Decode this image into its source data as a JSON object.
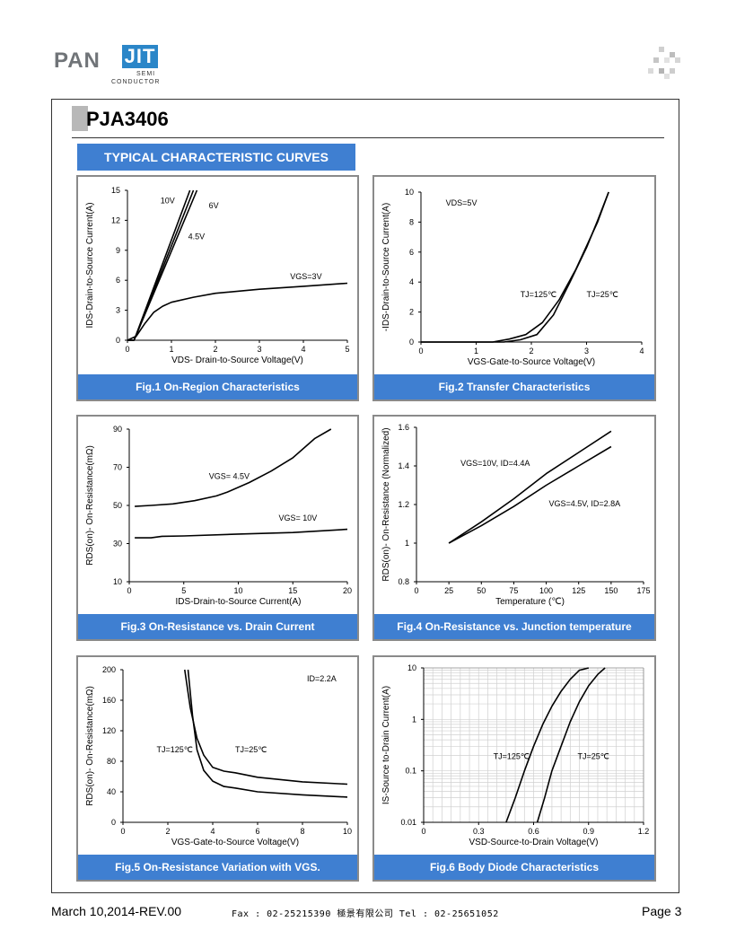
{
  "header": {
    "logo_pan": "PAN",
    "logo_jit": "JIT",
    "logo_semi": "SEMI",
    "logo_conductor": "CONDUCTOR",
    "brand_color": "#2b86c8",
    "part_number": "PJA3406",
    "section_title": "TYPICAL CHARACTERISTIC CURVES"
  },
  "footer": {
    "date_rev": "March 10,2014-REV.00",
    "contact": "Fax : 02-25215390   極景有限公司   Tel : 02-25651052",
    "page": "Page 3"
  },
  "accent_color": "#3f7fd1",
  "chart_data": [
    {
      "id": "fig1",
      "type": "line",
      "caption": "Fig.1 On-Region Characteristics",
      "xlabel": "VDS- Drain-to-Source Voltage(V)",
      "ylabel": "IDS-Drain-to-Source Current(A)",
      "xlim": [
        0,
        5
      ],
      "ylim": [
        0,
        15
      ],
      "xticks": [
        0,
        1,
        2,
        3,
        4,
        5
      ],
      "yticks": [
        0,
        3,
        6,
        9,
        12,
        15
      ],
      "series": [
        {
          "name": "10V",
          "x": [
            0,
            0.15,
            1.5
          ],
          "y": [
            0,
            0,
            15
          ]
        },
        {
          "name": "6V",
          "x": [
            0,
            0.15,
            1.58
          ],
          "y": [
            0,
            0,
            15
          ]
        },
        {
          "name": "4.5V",
          "x": [
            0,
            0.15,
            1.42
          ],
          "y": [
            0,
            0,
            15
          ]
        },
        {
          "name": "VGS=3V",
          "x": [
            0,
            0.2,
            0.4,
            0.6,
            0.8,
            1.0,
            1.5,
            2,
            3,
            4,
            5
          ],
          "y": [
            0,
            0.4,
            1.7,
            2.8,
            3.4,
            3.8,
            4.3,
            4.7,
            5.1,
            5.4,
            5.7
          ]
        }
      ],
      "annotations": [
        {
          "text": "10V",
          "x": 0.75,
          "y": 13.7
        },
        {
          "text": "6V",
          "x": 1.85,
          "y": 13.2
        },
        {
          "text": "4.5V",
          "x": 1.38,
          "y": 10.1
        },
        {
          "text": "VGS=3V",
          "x": 3.7,
          "y": 6.1
        }
      ]
    },
    {
      "id": "fig2",
      "type": "line",
      "caption": "Fig.2 Transfer Characteristics",
      "xlabel": "VGS-Gate-to-Source Voltage(V)",
      "ylabel": "-IDS-Drain-to-Source Current(A)",
      "xlim": [
        0,
        4
      ],
      "ylim": [
        0,
        10
      ],
      "xticks": [
        0,
        1,
        2,
        3,
        4
      ],
      "yticks": [
        0,
        2,
        4,
        6,
        8,
        10
      ],
      "series": [
        {
          "name": "TJ=125℃",
          "x": [
            0,
            1.3,
            1.6,
            1.9,
            2.2,
            2.5,
            2.8,
            3.2,
            3.4
          ],
          "y": [
            0,
            0,
            0.2,
            0.5,
            1.3,
            2.8,
            4.8,
            8.0,
            10
          ]
        },
        {
          "name": "TJ=25℃",
          "x": [
            0,
            1.5,
            1.8,
            2.1,
            2.4,
            2.7,
            3.0,
            3.2,
            3.4
          ],
          "y": [
            0,
            0,
            0.15,
            0.5,
            1.8,
            4.0,
            6.3,
            8.1,
            10
          ]
        }
      ],
      "annotations": [
        {
          "text": "VDS=5V",
          "x": 0.45,
          "y": 9.1
        },
        {
          "text": "TJ=125℃",
          "x": 1.8,
          "y": 3.0
        },
        {
          "text": "TJ=25℃",
          "x": 3.0,
          "y": 3.0
        }
      ]
    },
    {
      "id": "fig3",
      "type": "line",
      "caption": "Fig.3 On-Resistance vs. Drain Current",
      "xlabel": "IDS-Drain-to-Source  Current(A)",
      "ylabel": "RDS(on)- On-Resistance(mΩ)",
      "xlim": [
        0,
        20
      ],
      "ylim": [
        10,
        90
      ],
      "xticks": [
        0,
        5,
        10,
        15,
        20
      ],
      "yticks": [
        10,
        30,
        50,
        70,
        90
      ],
      "series": [
        {
          "name": "VGS= 4.5V",
          "x": [
            0.5,
            2,
            4,
            6,
            8,
            9,
            11,
            13,
            15,
            17,
            18.5
          ],
          "y": [
            49.5,
            50,
            50.8,
            52.5,
            55,
            57,
            62,
            68,
            75,
            85,
            90
          ]
        },
        {
          "name": "VGS= 10V",
          "x": [
            0.5,
            2,
            3,
            5,
            10,
            15,
            20
          ],
          "y": [
            33,
            33,
            33.8,
            34,
            35,
            35.8,
            37.5
          ]
        }
      ],
      "annotations": [
        {
          "text": "VGS= 4.5V",
          "x": 7.3,
          "y": 64
        },
        {
          "text": "VGS= 10V",
          "x": 13.7,
          "y": 42
        }
      ]
    },
    {
      "id": "fig4",
      "type": "line",
      "caption": "Fig.4 On-Resistance vs. Junction temperature",
      "xlabel": "Temperature (℃)",
      "ylabel": "RDS(on)- On-Resistance (Normalized)",
      "xlim": [
        0,
        175
      ],
      "ylim": [
        0.8,
        1.6
      ],
      "xticks": [
        0,
        25,
        50,
        75,
        100,
        125,
        150,
        175
      ],
      "yticks": [
        0.8,
        1.0,
        1.2,
        1.4,
        1.6
      ],
      "series": [
        {
          "name": "VGS=10V, ID=4.4A",
          "x": [
            25,
            50,
            75,
            100,
            125,
            150
          ],
          "y": [
            1.0,
            1.11,
            1.23,
            1.36,
            1.47,
            1.58
          ]
        },
        {
          "name": "VGS=4.5V, ID=2.8A",
          "x": [
            25,
            50,
            75,
            100,
            125,
            150
          ],
          "y": [
            1.0,
            1.09,
            1.19,
            1.3,
            1.4,
            1.5
          ]
        }
      ],
      "annotations": [
        {
          "text": "VGS=10V, ID=4.4A",
          "x": 34,
          "y": 1.4
        },
        {
          "text": "VGS=4.5V, ID=2.8A",
          "x": 102,
          "y": 1.19
        }
      ]
    },
    {
      "id": "fig5",
      "type": "line",
      "caption": "Fig.5 On-Resistance Variation with VGS.",
      "xlabel": "VGS-Gate-to-Source  Voltage(V)",
      "ylabel": "RDS(on)- On-Resistance(mΩ)",
      "xlim": [
        0,
        10
      ],
      "ylim": [
        0,
        200
      ],
      "xticks": [
        0,
        2,
        4,
        6,
        8,
        10
      ],
      "yticks": [
        0,
        40,
        80,
        120,
        160,
        200
      ],
      "series": [
        {
          "name": "TJ=125℃",
          "x": [
            2.75,
            3.0,
            3.3,
            3.6,
            4.0,
            4.5,
            5.0,
            6,
            8,
            10
          ],
          "y": [
            200,
            150,
            110,
            88,
            72,
            67,
            65,
            59,
            53,
            50
          ]
        },
        {
          "name": "TJ=25℃",
          "x": [
            2.9,
            3.1,
            3.3,
            3.6,
            4.0,
            4.5,
            5.0,
            6,
            8,
            10
          ],
          "y": [
            200,
            140,
            95,
            68,
            54,
            47,
            45,
            40,
            36,
            33
          ]
        }
      ],
      "annotations": [
        {
          "text": "ID=2.2A",
          "x": 8.2,
          "y": 185
        },
        {
          "text": "TJ=125℃",
          "x": 1.5,
          "y": 92
        },
        {
          "text": "TJ=25℃",
          "x": 5.0,
          "y": 92
        }
      ]
    },
    {
      "id": "fig6",
      "type": "line",
      "caption": "Fig.6 Body Diode Characteristics",
      "xlabel": "VSD-Source-to-Drain Voltage(V)",
      "ylabel": "IS-Source  to-Drain Current(A)",
      "xlim": [
        0,
        1.2
      ],
      "ylim": [
        0.01,
        10
      ],
      "yscale": "log",
      "xticks": [
        0,
        0.3,
        0.6,
        0.9,
        1.2
      ],
      "yticks": [
        0.01,
        0.1,
        1,
        10
      ],
      "grid": true,
      "series": [
        {
          "name": "TJ=125℃",
          "x": [
            0.45,
            0.5,
            0.55,
            0.6,
            0.65,
            0.7,
            0.75,
            0.8,
            0.85,
            0.9
          ],
          "y": [
            0.01,
            0.03,
            0.1,
            0.3,
            0.8,
            1.8,
            3.5,
            6,
            9,
            10
          ]
        },
        {
          "name": "TJ=25℃",
          "x": [
            0.62,
            0.66,
            0.7,
            0.75,
            0.8,
            0.85,
            0.9,
            0.95,
            0.99
          ],
          "y": [
            0.01,
            0.03,
            0.1,
            0.3,
            0.9,
            2.2,
            4.5,
            7.5,
            10
          ]
        }
      ],
      "annotations": [
        {
          "text": "TJ=125℃",
          "x": 0.38,
          "y": 0.17
        },
        {
          "text": "TJ=25℃",
          "x": 0.84,
          "y": 0.17
        }
      ]
    }
  ]
}
